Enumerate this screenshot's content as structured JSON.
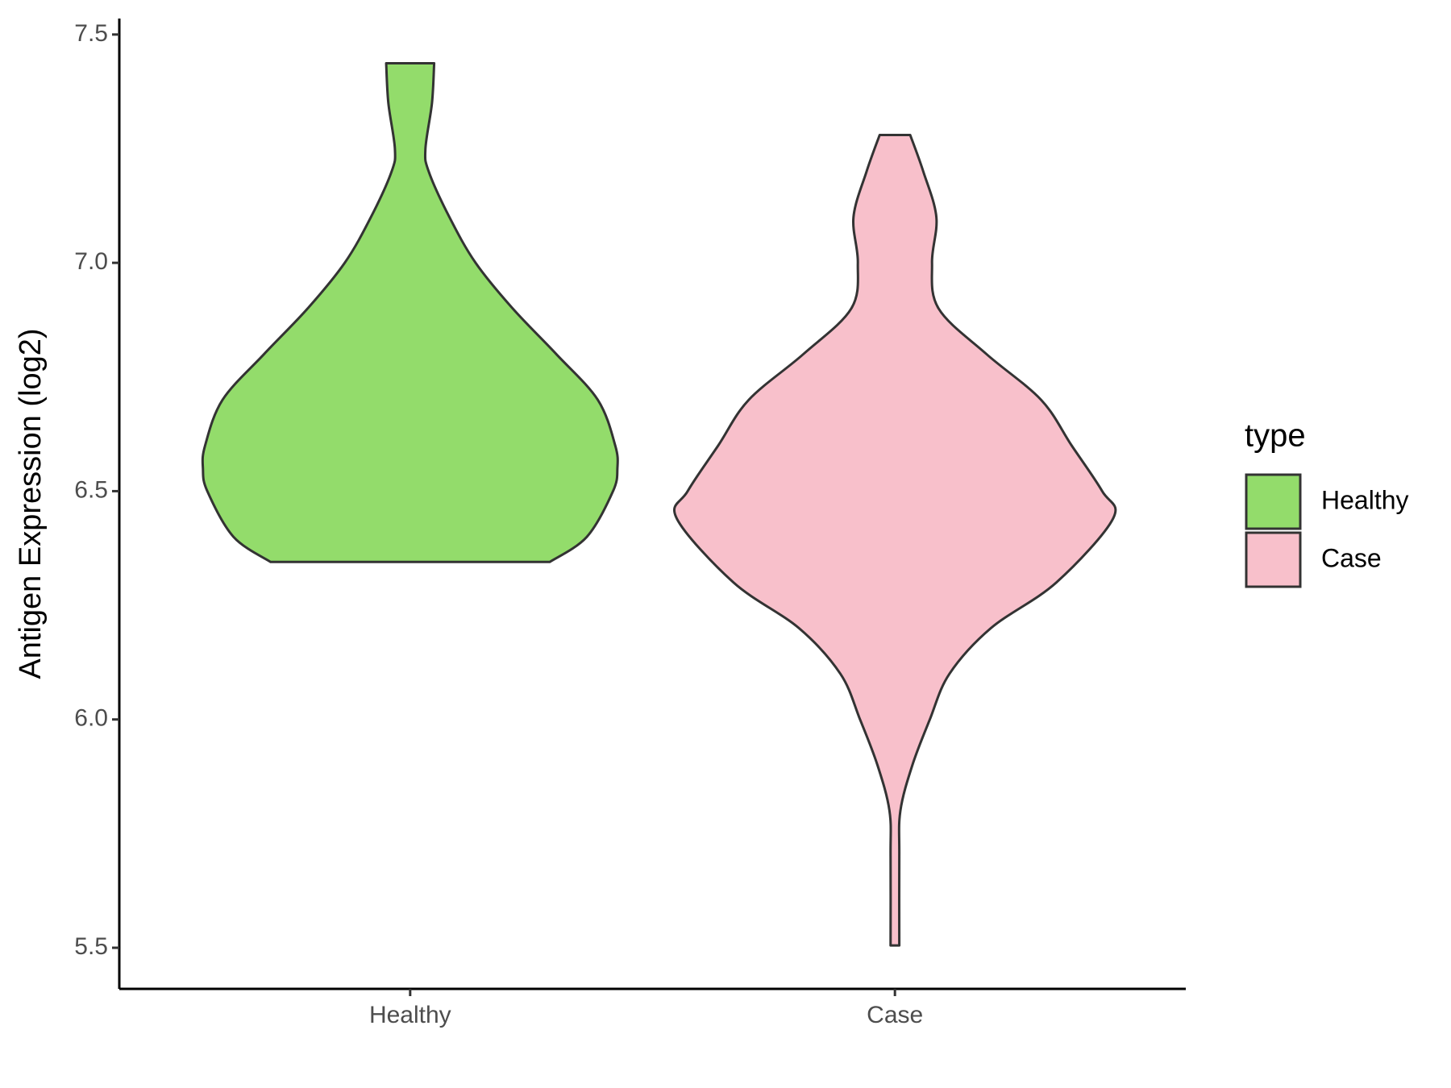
{
  "chart_data": {
    "type": "violin",
    "y_label": "Antigen Expression (log2)",
    "legend_title": "type",
    "categories": [
      "Healthy",
      "Case"
    ],
    "series": [
      {
        "name": "Healthy",
        "color": "#93dc6b",
        "y": [
          7.437,
          7.35,
          7.25,
          7.2,
          7.1,
          7.0,
          6.9,
          6.8,
          6.7,
          6.6,
          6.55,
          6.5,
          6.4,
          6.345
        ],
        "widths": [
          0.11,
          0.1,
          0.07,
          0.085,
          0.18,
          0.3,
          0.47,
          0.67,
          0.86,
          0.94,
          0.95,
          0.93,
          0.81,
          0.64
        ]
      },
      {
        "name": "Case",
        "color": "#f8c0cb",
        "y": [
          7.28,
          7.2,
          7.1,
          7.0,
          6.9,
          6.8,
          6.7,
          6.6,
          6.5,
          6.44,
          6.3,
          6.2,
          6.1,
          6.0,
          5.9,
          5.8,
          5.7,
          5.505
        ],
        "widths": [
          0.07,
          0.13,
          0.19,
          0.17,
          0.2,
          0.42,
          0.67,
          0.81,
          0.95,
          1.0,
          0.74,
          0.44,
          0.25,
          0.16,
          0.08,
          0.025,
          0.02,
          0.02
        ]
      }
    ],
    "ylim": [
      5.41,
      7.535
    ],
    "yticks": [
      5.5,
      {
        "value": 6.0,
        "label": "6.0"
      },
      6.5,
      {
        "value": 7.0,
        "label": "7.0"
      },
      7.5
    ],
    "grid": false,
    "legend": "right"
  }
}
